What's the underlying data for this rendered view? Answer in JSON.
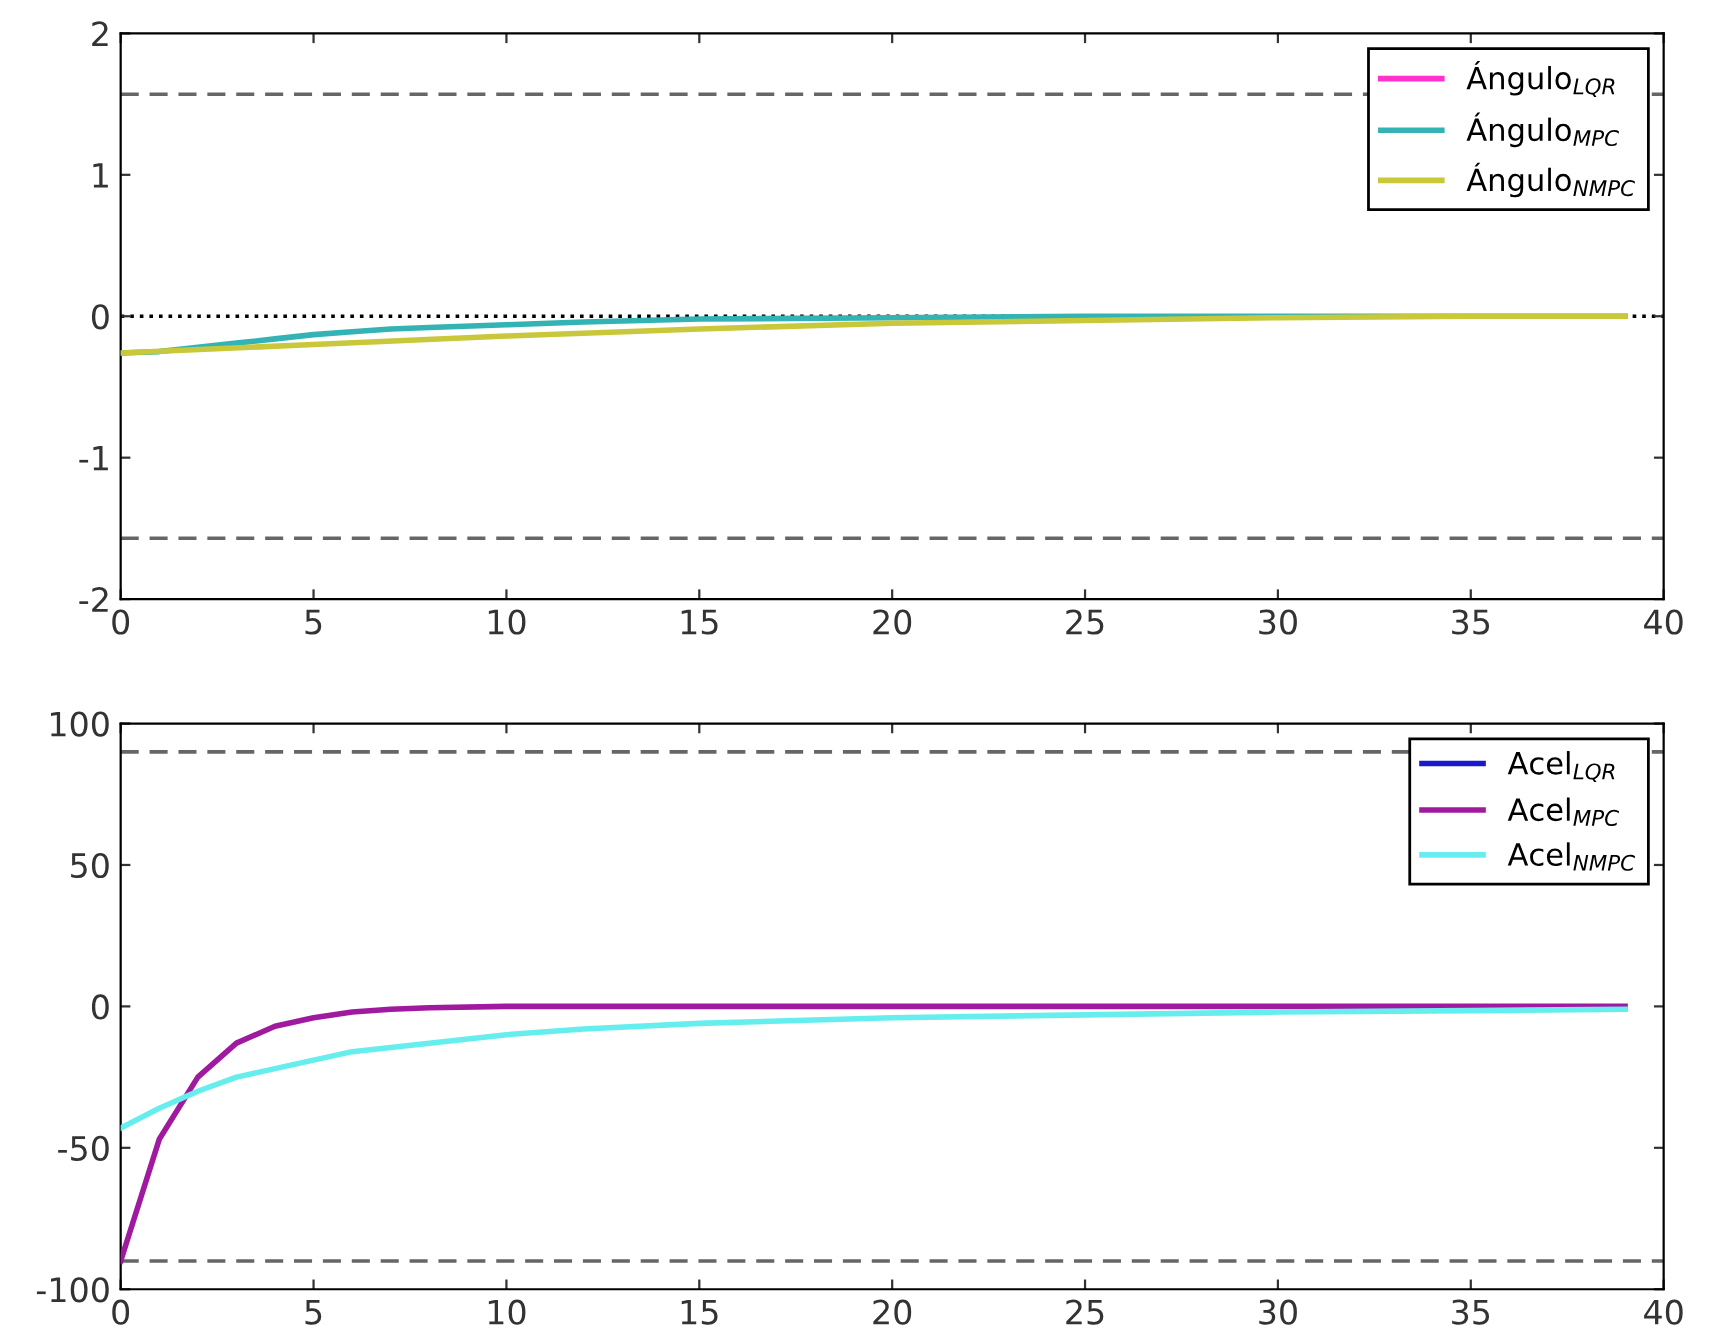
{
  "chart_data": [
    {
      "type": "line",
      "xlim": [
        0,
        40
      ],
      "xticks": [
        0,
        5,
        10,
        15,
        20,
        25,
        30,
        35,
        40
      ],
      "ylim": [
        -2,
        2
      ],
      "yticks": [
        -2,
        -1,
        0,
        1,
        2
      ],
      "grid": false,
      "legend": "top right",
      "line_style": "solid",
      "marker": "none",
      "ref_lines": [
        {
          "axis": "y",
          "value": 1.57,
          "color": "#666666",
          "line_style": "dashed"
        },
        {
          "axis": "y",
          "value": -1.57,
          "color": "#666666",
          "line_style": "dashed"
        },
        {
          "axis": "y",
          "value": 0,
          "color": "#000000",
          "line_style": "dotted"
        }
      ],
      "series": [
        {
          "name": "Ángulo$_{LQR}$",
          "color": "#ff33cc"
        },
        {
          "name": "Ángulo$_{MPC}$",
          "color": "#33b3b3",
          "x": [
            0,
            1,
            2,
            3,
            4,
            5,
            6,
            7,
            8,
            10,
            12,
            15,
            20,
            25,
            39
          ],
          "values": [
            -0.26,
            -0.25,
            -0.22,
            -0.19,
            -0.16,
            -0.13,
            -0.11,
            -0.09,
            -0.08,
            -0.06,
            -0.04,
            -0.02,
            -0.01,
            0,
            0
          ]
        },
        {
          "name": "Ángulo$_{NMPC}$",
          "color": "#c8c83a",
          "x": [
            0,
            5,
            10,
            15,
            20,
            25,
            30,
            35,
            39
          ],
          "values": [
            -0.26,
            -0.2,
            -0.14,
            -0.09,
            -0.05,
            -0.03,
            -0.01,
            0,
            0
          ]
        }
      ]
    },
    {
      "type": "line",
      "xlim": [
        0,
        40
      ],
      "xticks": [
        0,
        5,
        10,
        15,
        20,
        25,
        30,
        35,
        40
      ],
      "ylim": [
        -100,
        100
      ],
      "yticks": [
        -100,
        -50,
        0,
        50,
        100
      ],
      "grid": false,
      "legend": "top right",
      "line_style": "solid",
      "marker": "none",
      "ref_lines": [
        {
          "axis": "y",
          "value": 90,
          "color": "#666666",
          "line_style": "dashed"
        },
        {
          "axis": "y",
          "value": -90,
          "color": "#666666",
          "line_style": "dashed"
        }
      ],
      "series": [
        {
          "name": "Acel$_{LQR}$",
          "color": "#1a1acc"
        },
        {
          "name": "Acel$_{MPC}$",
          "color": "#a01aa0",
          "x": [
            0,
            1,
            2,
            3,
            4,
            5,
            6,
            7,
            8,
            10,
            39
          ],
          "values": [
            -90,
            -47,
            -25,
            -13,
            -7,
            -4,
            -2,
            -1,
            -0.5,
            0,
            0
          ]
        },
        {
          "name": "Acel$_{NMPC}$",
          "color": "#66eeee",
          "x": [
            0,
            1,
            2,
            3,
            4,
            5,
            6,
            8,
            10,
            12,
            15,
            20,
            25,
            30,
            35,
            39
          ],
          "values": [
            -43,
            -36,
            -30,
            -25,
            -22,
            -19,
            -16,
            -13,
            -10,
            -8,
            -6,
            -4,
            -3,
            -2,
            -1.5,
            -1
          ]
        }
      ]
    }
  ]
}
